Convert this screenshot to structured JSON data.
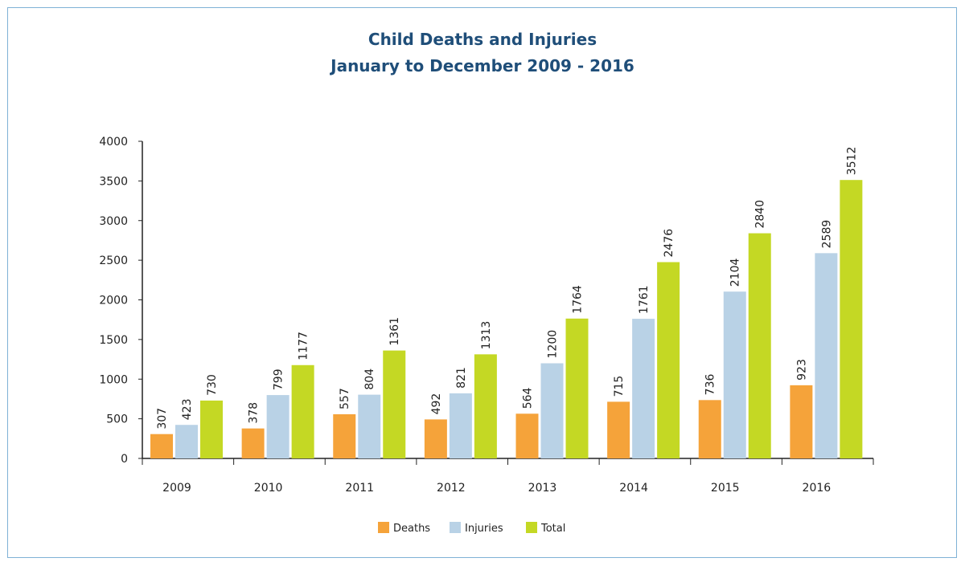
{
  "chart_data": {
    "type": "bar",
    "title": "Child Deaths and Injuries",
    "subtitle": "January to December 2009 - 2016",
    "categories": [
      "2009",
      "2010",
      "2011",
      "2012",
      "2013",
      "2014",
      "2015",
      "2016"
    ],
    "series": [
      {
        "name": "Deaths",
        "color": "#f5a33a",
        "values": [
          307,
          378,
          557,
          492,
          564,
          715,
          736,
          923
        ]
      },
      {
        "name": "Injuries",
        "color": "#b9d2e6",
        "values": [
          423,
          799,
          804,
          821,
          1200,
          1761,
          2104,
          2589
        ]
      },
      {
        "name": "Total",
        "color": "#c4d824",
        "values": [
          730,
          1177,
          1361,
          1313,
          1764,
          2476,
          2840,
          3512
        ]
      }
    ],
    "ylim": [
      0,
      4000
    ],
    "yticks": [
      0,
      500,
      1000,
      1500,
      2000,
      2500,
      3000,
      3500,
      4000
    ],
    "grid": false,
    "legend": "bottom-center"
  }
}
